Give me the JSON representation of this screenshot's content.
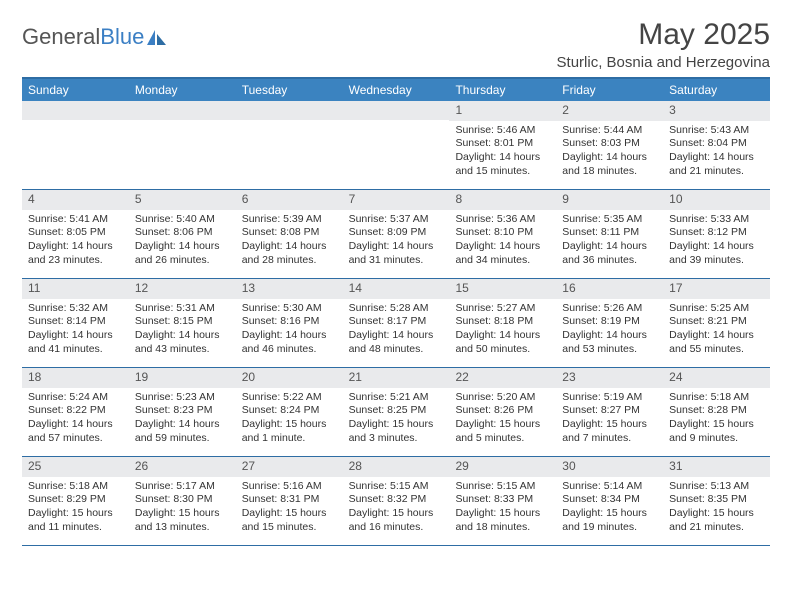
{
  "header": {
    "logo_text_1": "General",
    "logo_text_2": "Blue",
    "month_title": "May 2025",
    "location": "Sturlic, Bosnia and Herzegovina"
  },
  "colors": {
    "header_bar": "#3b83c0",
    "border": "#2e6da4",
    "daynum_bg": "#e9eaec",
    "text": "#333333",
    "logo_gray": "#555555",
    "logo_blue": "#3b7fc4"
  },
  "weekdays": [
    "Sunday",
    "Monday",
    "Tuesday",
    "Wednesday",
    "Thursday",
    "Friday",
    "Saturday"
  ],
  "weeks": [
    [
      {
        "n": "",
        "lines": []
      },
      {
        "n": "",
        "lines": []
      },
      {
        "n": "",
        "lines": []
      },
      {
        "n": "",
        "lines": []
      },
      {
        "n": "1",
        "lines": [
          "Sunrise: 5:46 AM",
          "Sunset: 8:01 PM",
          "Daylight: 14 hours and 15 minutes."
        ]
      },
      {
        "n": "2",
        "lines": [
          "Sunrise: 5:44 AM",
          "Sunset: 8:03 PM",
          "Daylight: 14 hours and 18 minutes."
        ]
      },
      {
        "n": "3",
        "lines": [
          "Sunrise: 5:43 AM",
          "Sunset: 8:04 PM",
          "Daylight: 14 hours and 21 minutes."
        ]
      }
    ],
    [
      {
        "n": "4",
        "lines": [
          "Sunrise: 5:41 AM",
          "Sunset: 8:05 PM",
          "Daylight: 14 hours and 23 minutes."
        ]
      },
      {
        "n": "5",
        "lines": [
          "Sunrise: 5:40 AM",
          "Sunset: 8:06 PM",
          "Daylight: 14 hours and 26 minutes."
        ]
      },
      {
        "n": "6",
        "lines": [
          "Sunrise: 5:39 AM",
          "Sunset: 8:08 PM",
          "Daylight: 14 hours and 28 minutes."
        ]
      },
      {
        "n": "7",
        "lines": [
          "Sunrise: 5:37 AM",
          "Sunset: 8:09 PM",
          "Daylight: 14 hours and 31 minutes."
        ]
      },
      {
        "n": "8",
        "lines": [
          "Sunrise: 5:36 AM",
          "Sunset: 8:10 PM",
          "Daylight: 14 hours and 34 minutes."
        ]
      },
      {
        "n": "9",
        "lines": [
          "Sunrise: 5:35 AM",
          "Sunset: 8:11 PM",
          "Daylight: 14 hours and 36 minutes."
        ]
      },
      {
        "n": "10",
        "lines": [
          "Sunrise: 5:33 AM",
          "Sunset: 8:12 PM",
          "Daylight: 14 hours and 39 minutes."
        ]
      }
    ],
    [
      {
        "n": "11",
        "lines": [
          "Sunrise: 5:32 AM",
          "Sunset: 8:14 PM",
          "Daylight: 14 hours and 41 minutes."
        ]
      },
      {
        "n": "12",
        "lines": [
          "Sunrise: 5:31 AM",
          "Sunset: 8:15 PM",
          "Daylight: 14 hours and 43 minutes."
        ]
      },
      {
        "n": "13",
        "lines": [
          "Sunrise: 5:30 AM",
          "Sunset: 8:16 PM",
          "Daylight: 14 hours and 46 minutes."
        ]
      },
      {
        "n": "14",
        "lines": [
          "Sunrise: 5:28 AM",
          "Sunset: 8:17 PM",
          "Daylight: 14 hours and 48 minutes."
        ]
      },
      {
        "n": "15",
        "lines": [
          "Sunrise: 5:27 AM",
          "Sunset: 8:18 PM",
          "Daylight: 14 hours and 50 minutes."
        ]
      },
      {
        "n": "16",
        "lines": [
          "Sunrise: 5:26 AM",
          "Sunset: 8:19 PM",
          "Daylight: 14 hours and 53 minutes."
        ]
      },
      {
        "n": "17",
        "lines": [
          "Sunrise: 5:25 AM",
          "Sunset: 8:21 PM",
          "Daylight: 14 hours and 55 minutes."
        ]
      }
    ],
    [
      {
        "n": "18",
        "lines": [
          "Sunrise: 5:24 AM",
          "Sunset: 8:22 PM",
          "Daylight: 14 hours and 57 minutes."
        ]
      },
      {
        "n": "19",
        "lines": [
          "Sunrise: 5:23 AM",
          "Sunset: 8:23 PM",
          "Daylight: 14 hours and 59 minutes."
        ]
      },
      {
        "n": "20",
        "lines": [
          "Sunrise: 5:22 AM",
          "Sunset: 8:24 PM",
          "Daylight: 15 hours and 1 minute."
        ]
      },
      {
        "n": "21",
        "lines": [
          "Sunrise: 5:21 AM",
          "Sunset: 8:25 PM",
          "Daylight: 15 hours and 3 minutes."
        ]
      },
      {
        "n": "22",
        "lines": [
          "Sunrise: 5:20 AM",
          "Sunset: 8:26 PM",
          "Daylight: 15 hours and 5 minutes."
        ]
      },
      {
        "n": "23",
        "lines": [
          "Sunrise: 5:19 AM",
          "Sunset: 8:27 PM",
          "Daylight: 15 hours and 7 minutes."
        ]
      },
      {
        "n": "24",
        "lines": [
          "Sunrise: 5:18 AM",
          "Sunset: 8:28 PM",
          "Daylight: 15 hours and 9 minutes."
        ]
      }
    ],
    [
      {
        "n": "25",
        "lines": [
          "Sunrise: 5:18 AM",
          "Sunset: 8:29 PM",
          "Daylight: 15 hours and 11 minutes."
        ]
      },
      {
        "n": "26",
        "lines": [
          "Sunrise: 5:17 AM",
          "Sunset: 8:30 PM",
          "Daylight: 15 hours and 13 minutes."
        ]
      },
      {
        "n": "27",
        "lines": [
          "Sunrise: 5:16 AM",
          "Sunset: 8:31 PM",
          "Daylight: 15 hours and 15 minutes."
        ]
      },
      {
        "n": "28",
        "lines": [
          "Sunrise: 5:15 AM",
          "Sunset: 8:32 PM",
          "Daylight: 15 hours and 16 minutes."
        ]
      },
      {
        "n": "29",
        "lines": [
          "Sunrise: 5:15 AM",
          "Sunset: 8:33 PM",
          "Daylight: 15 hours and 18 minutes."
        ]
      },
      {
        "n": "30",
        "lines": [
          "Sunrise: 5:14 AM",
          "Sunset: 8:34 PM",
          "Daylight: 15 hours and 19 minutes."
        ]
      },
      {
        "n": "31",
        "lines": [
          "Sunrise: 5:13 AM",
          "Sunset: 8:35 PM",
          "Daylight: 15 hours and 21 minutes."
        ]
      }
    ]
  ]
}
